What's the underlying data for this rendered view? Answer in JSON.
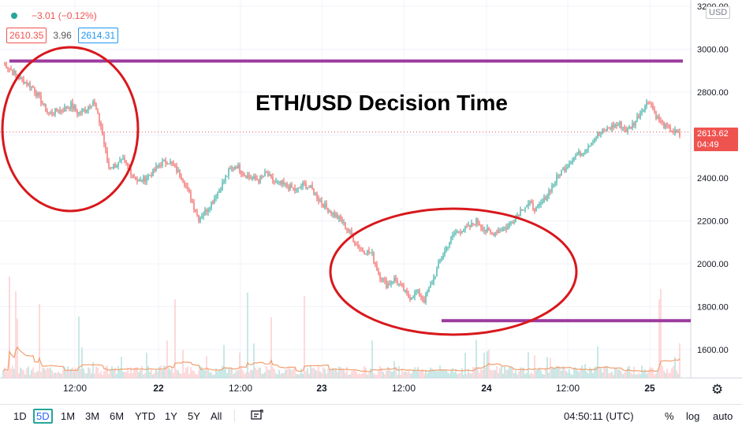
{
  "header": {
    "change": "−3.01 (−0.12%)",
    "bid": "2610.35",
    "spread": "3.96",
    "ask": "2614.31",
    "currency": "USD"
  },
  "annotation_title": "ETH/USD Decision Time",
  "price_tag": {
    "price": "2613.62",
    "countdown": "04:49"
  },
  "toolbar": {
    "timeframes": [
      "1D",
      "5D",
      "1M",
      "3M",
      "6M",
      "YTD",
      "1Y",
      "5Y",
      "All"
    ],
    "selected": "5D",
    "compare_icon": "compare-icon",
    "clock": "04:50:11 (UTC)",
    "percent": "%",
    "log": "log",
    "auto": "auto",
    "settings_icon": "gear-icon"
  },
  "colors": {
    "up": "#26a69a",
    "down": "#ef5350",
    "ellipse": "#d8181c",
    "line": "#9c3a9e",
    "volume_ma": "#f0a070"
  },
  "chart_data": {
    "type": "candlestick",
    "title": "ETH/USD Decision Time",
    "y_axis": {
      "min": 1500,
      "max": 3200,
      "ticks": [
        1600,
        1800,
        2000,
        2200,
        2400,
        2600,
        2800,
        3000,
        3200
      ],
      "label": "USD"
    },
    "x_axis": {
      "ticks": [
        "12:00",
        "22",
        "12:00",
        "23",
        "12:00",
        "24",
        "12:00",
        "25"
      ]
    },
    "price_path": [
      [
        0,
        2940
      ],
      [
        2,
        2870
      ],
      [
        4,
        2820
      ],
      [
        5,
        2760
      ],
      [
        6,
        2700
      ],
      [
        8,
        2720
      ],
      [
        9,
        2740
      ],
      [
        10,
        2700
      ],
      [
        11,
        2720
      ],
      [
        12,
        2760
      ],
      [
        13,
        2640
      ],
      [
        14,
        2450
      ],
      [
        15,
        2460
      ],
      [
        16,
        2480
      ],
      [
        17,
        2430
      ],
      [
        18,
        2380
      ],
      [
        19,
        2400
      ],
      [
        20,
        2430
      ],
      [
        21,
        2470
      ],
      [
        22,
        2480
      ],
      [
        23,
        2440
      ],
      [
        24,
        2390
      ],
      [
        25,
        2300
      ],
      [
        26,
        2210
      ],
      [
        27,
        2250
      ],
      [
        28,
        2300
      ],
      [
        29,
        2360
      ],
      [
        30,
        2430
      ],
      [
        31,
        2460
      ],
      [
        32,
        2420
      ],
      [
        33,
        2400
      ],
      [
        34,
        2390
      ],
      [
        35,
        2420
      ],
      [
        36,
        2380
      ],
      [
        37,
        2370
      ],
      [
        38,
        2360
      ],
      [
        39,
        2340
      ],
      [
        40,
        2370
      ],
      [
        41,
        2350
      ],
      [
        42,
        2300
      ],
      [
        43,
        2260
      ],
      [
        44,
        2230
      ],
      [
        45,
        2200
      ],
      [
        46,
        2150
      ],
      [
        47,
        2090
      ],
      [
        48,
        2060
      ],
      [
        49,
        2050
      ],
      [
        50,
        1950
      ],
      [
        51,
        1900
      ],
      [
        52,
        1930
      ],
      [
        53,
        1890
      ],
      [
        54,
        1840
      ],
      [
        55,
        1870
      ],
      [
        56,
        1830
      ],
      [
        57,
        1910
      ],
      [
        58,
        2000
      ],
      [
        59,
        2080
      ],
      [
        60,
        2140
      ],
      [
        61,
        2160
      ],
      [
        62,
        2170
      ],
      [
        63,
        2200
      ],
      [
        64,
        2160
      ],
      [
        65,
        2140
      ],
      [
        66,
        2160
      ],
      [
        67,
        2170
      ],
      [
        68,
        2210
      ],
      [
        69,
        2260
      ],
      [
        70,
        2280
      ],
      [
        71,
        2250
      ],
      [
        72,
        2300
      ],
      [
        73,
        2360
      ],
      [
        74,
        2420
      ],
      [
        75,
        2460
      ],
      [
        76,
        2500
      ],
      [
        77,
        2520
      ],
      [
        78,
        2560
      ],
      [
        79,
        2600
      ],
      [
        80,
        2620
      ],
      [
        81,
        2640
      ],
      [
        82,
        2650
      ],
      [
        83,
        2620
      ],
      [
        84,
        2660
      ],
      [
        85,
        2720
      ],
      [
        86,
        2760
      ],
      [
        87,
        2680
      ],
      [
        88,
        2640
      ],
      [
        89,
        2620
      ],
      [
        90,
        2600
      ]
    ],
    "x_range": [
      0,
      90
    ],
    "last_price": 2613.62,
    "horizontal_lines": [
      2945,
      1735
    ]
  }
}
